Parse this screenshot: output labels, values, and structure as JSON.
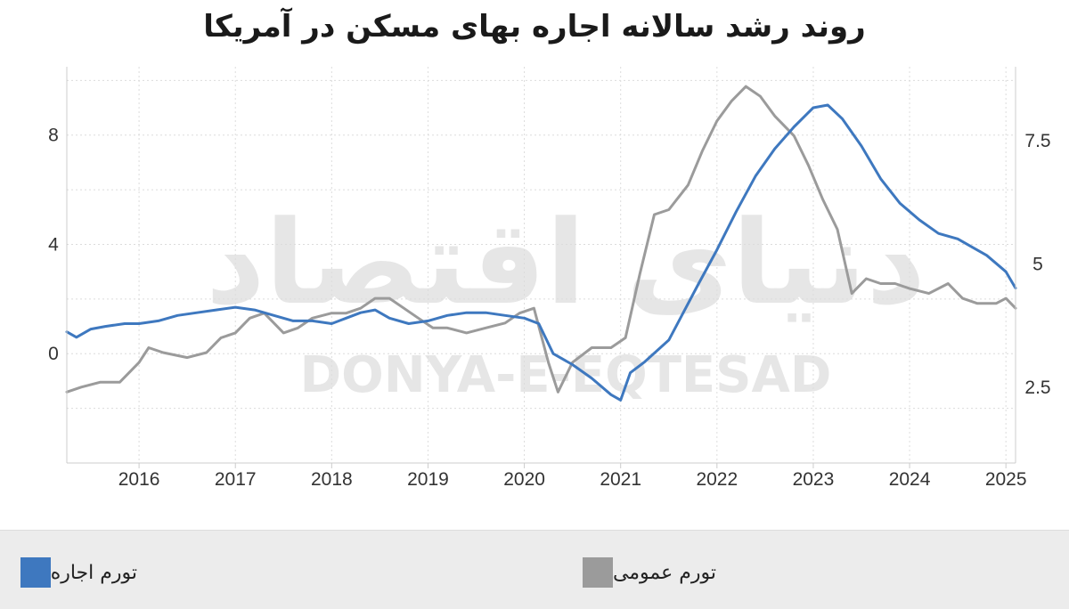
{
  "chart_data": {
    "type": "line",
    "title": "روند رشد سالانه اجاره بهای مسکن در آمریکا",
    "x_ticks": [
      "2016",
      "2017",
      "2018",
      "2019",
      "2020",
      "2021",
      "2022",
      "2023",
      "2024",
      "2025"
    ],
    "xlim": [
      2015.25,
      2025.1
    ],
    "y_left": {
      "ticks": [
        "0",
        "4",
        "8"
      ],
      "ylim": [
        -4,
        10.5
      ]
    },
    "y_right": {
      "ticks": [
        "2.5",
        "5",
        "7.5"
      ],
      "ylim": [
        0.96,
        9.0
      ]
    },
    "grid": true,
    "legend_position": "bottom",
    "watermark": {
      "latin": "DONYA-E-EQTESAD",
      "persian": "دنیای اقتصاد"
    },
    "series": [
      {
        "name": "تورم اجاره",
        "axis": "left",
        "color": "#3e78bf",
        "x": [
          2015.25,
          2015.35,
          2015.5,
          2015.65,
          2015.85,
          2016.0,
          2016.2,
          2016.4,
          2016.6,
          2016.8,
          2017.0,
          2017.2,
          2017.4,
          2017.6,
          2017.8,
          2018.0,
          2018.15,
          2018.3,
          2018.45,
          2018.6,
          2018.8,
          2019.0,
          2019.2,
          2019.4,
          2019.6,
          2019.8,
          2020.0,
          2020.15,
          2020.3,
          2020.5,
          2020.7,
          2020.9,
          2021.0,
          2021.1,
          2021.25,
          2021.5,
          2021.8,
          2022.0,
          2022.2,
          2022.4,
          2022.6,
          2022.8,
          2023.0,
          2023.15,
          2023.3,
          2023.5,
          2023.7,
          2023.9,
          2024.1,
          2024.3,
          2024.5,
          2024.65,
          2024.8,
          2025.0,
          2025.1
        ],
        "values": [
          0.8,
          0.6,
          0.9,
          1.0,
          1.1,
          1.1,
          1.2,
          1.4,
          1.5,
          1.6,
          1.7,
          1.6,
          1.4,
          1.2,
          1.2,
          1.1,
          1.3,
          1.5,
          1.6,
          1.3,
          1.1,
          1.2,
          1.4,
          1.5,
          1.5,
          1.4,
          1.3,
          1.1,
          0.0,
          -0.4,
          -0.9,
          -1.5,
          -1.7,
          -0.7,
          -0.3,
          0.5,
          2.5,
          3.8,
          5.2,
          6.5,
          7.5,
          8.3,
          9.0,
          9.1,
          8.6,
          7.6,
          6.4,
          5.5,
          4.9,
          4.4,
          4.2,
          3.9,
          3.6,
          3.0,
          2.4
        ]
      },
      {
        "name": "تورم عمومی",
        "axis": "right",
        "color": "#9b9b9b",
        "x": [
          2015.25,
          2015.4,
          2015.6,
          2015.8,
          2016.0,
          2016.1,
          2016.25,
          2016.5,
          2016.7,
          2016.85,
          2017.0,
          2017.15,
          2017.3,
          2017.5,
          2017.65,
          2017.8,
          2018.0,
          2018.15,
          2018.3,
          2018.45,
          2018.6,
          2018.75,
          2018.9,
          2019.05,
          2019.2,
          2019.4,
          2019.6,
          2019.8,
          2019.95,
          2020.1,
          2020.25,
          2020.35,
          2020.5,
          2020.7,
          2020.9,
          2021.05,
          2021.2,
          2021.35,
          2021.5,
          2021.7,
          2021.85,
          2022.0,
          2022.15,
          2022.3,
          2022.45,
          2022.6,
          2022.8,
          2022.95,
          2023.1,
          2023.25,
          2023.4,
          2023.55,
          2023.7,
          2023.85,
          2024.0,
          2024.2,
          2024.4,
          2024.55,
          2024.7,
          2024.9,
          2025.0,
          2025.1
        ],
        "values": [
          2.4,
          2.5,
          2.6,
          2.6,
          3.0,
          3.3,
          3.2,
          3.1,
          3.2,
          3.5,
          3.6,
          3.9,
          4.0,
          3.6,
          3.7,
          3.9,
          4.0,
          4.0,
          4.1,
          4.3,
          4.3,
          4.1,
          3.9,
          3.7,
          3.7,
          3.6,
          3.7,
          3.8,
          4.0,
          4.1,
          3.0,
          2.4,
          3.0,
          3.3,
          3.3,
          3.5,
          4.8,
          6.0,
          6.1,
          6.6,
          7.3,
          7.9,
          8.3,
          8.6,
          8.4,
          8.0,
          7.6,
          7.0,
          6.3,
          5.7,
          4.4,
          4.7,
          4.6,
          4.6,
          4.5,
          4.4,
          4.6,
          4.3,
          4.2,
          4.2,
          4.3,
          4.1
        ]
      }
    ]
  }
}
